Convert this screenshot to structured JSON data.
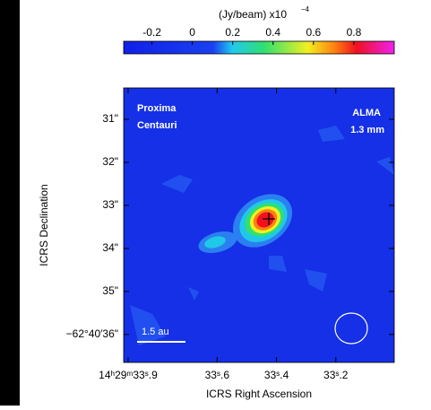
{
  "chart_data": {
    "type": "image",
    "colorbar": {
      "label": "(Jy/beam)  x10",
      "exponent": "−4",
      "lim": [
        -0.34,
        1.0
      ],
      "ticks": [
        -0.2,
        0,
        0.2,
        0.4,
        0.6,
        0.8
      ]
    },
    "xlabel": "ICRS Right Ascension",
    "ylabel": "ICRS Declination",
    "xlim": [
      33.915,
      33.003
    ],
    "ylim": [
      36.65,
      30.27
    ],
    "xticks": [
      {
        "value": 33.9,
        "label": "14ʰ29ᵐ33ˢ.9"
      },
      {
        "value": 33.6,
        "label": "33ˢ.6"
      },
      {
        "value": 33.4,
        "label": "33ˢ.4"
      },
      {
        "value": 33.2,
        "label": "33ˢ.2"
      }
    ],
    "yticks": [
      {
        "value": 31,
        "label": "31\""
      },
      {
        "value": 32,
        "label": "32\""
      },
      {
        "value": 33,
        "label": "33\""
      },
      {
        "value": 34,
        "label": "34\""
      },
      {
        "value": 35,
        "label": "35\""
      },
      {
        "value": 36,
        "label": "−62°40′36\""
      }
    ],
    "annotations": {
      "target": [
        "Proxima",
        "Centauri"
      ],
      "instrument": [
        "ALMA",
        "1.3 mm"
      ],
      "scalebar": "1.5 au"
    }
  }
}
